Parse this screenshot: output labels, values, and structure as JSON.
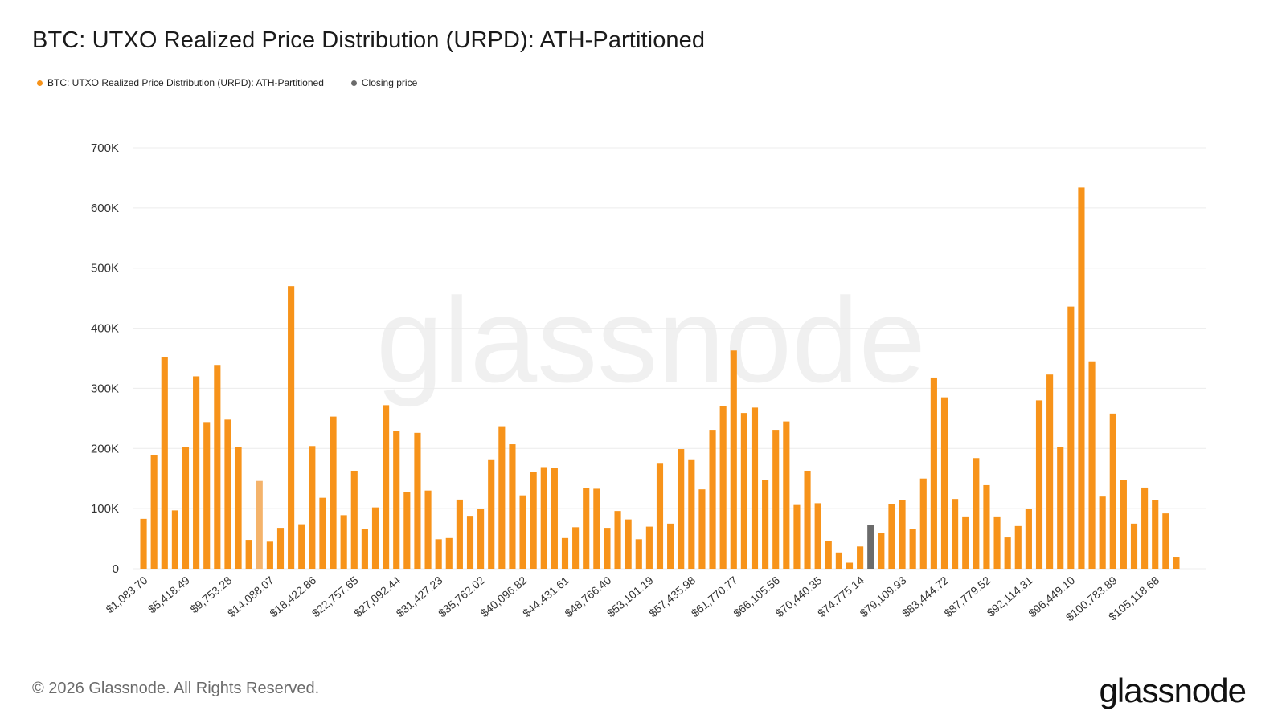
{
  "header": {
    "title": "BTC: UTXO Realized Price Distribution (URPD): ATH-Partitioned"
  },
  "footer": {
    "copyright": "© 2026 Glassnode. All Rights Reserved.",
    "logo_text": "glassnode"
  },
  "watermark": "glassnode",
  "colors": {
    "bar": "#f7931a",
    "bar_light": "#f4b36b",
    "closing": "#6b6b6b",
    "grid": "#ececec",
    "axis_text": "#333333"
  },
  "chart_data": {
    "type": "bar",
    "legend": [
      {
        "name": "BTC: UTXO Realized Price Distribution (URPD): ATH-Partitioned",
        "color": "#f7931a"
      },
      {
        "name": "Closing price",
        "color": "#6b6b6b"
      }
    ],
    "legend_position": "top-left",
    "grid": true,
    "ylim": [
      0,
      700000
    ],
    "y_ticks": [
      {
        "value": 0,
        "label": "0"
      },
      {
        "value": 100000,
        "label": "100K"
      },
      {
        "value": 200000,
        "label": "200K"
      },
      {
        "value": 300000,
        "label": "300K"
      },
      {
        "value": 400000,
        "label": "400K"
      },
      {
        "value": 500000,
        "label": "500K"
      },
      {
        "value": 600000,
        "label": "600K"
      },
      {
        "value": 700000,
        "label": "700K"
      }
    ],
    "x_tick_labels": [
      {
        "bar_index": 0,
        "label": "$1,083.70"
      },
      {
        "bar_index": 4,
        "label": "$5,418.49"
      },
      {
        "bar_index": 8,
        "label": "$9,753.28"
      },
      {
        "bar_index": 12,
        "label": "$14,088.07"
      },
      {
        "bar_index": 16,
        "label": "$18,422.86"
      },
      {
        "bar_index": 20,
        "label": "$22,757.65"
      },
      {
        "bar_index": 24,
        "label": "$27,092.44"
      },
      {
        "bar_index": 28,
        "label": "$31,427.23"
      },
      {
        "bar_index": 32,
        "label": "$35,762.02"
      },
      {
        "bar_index": 36,
        "label": "$40,096.82"
      },
      {
        "bar_index": 40,
        "label": "$44,431.61"
      },
      {
        "bar_index": 44,
        "label": "$48,766.40"
      },
      {
        "bar_index": 48,
        "label": "$53,101.19"
      },
      {
        "bar_index": 52,
        "label": "$57,435.98"
      },
      {
        "bar_index": 56,
        "label": "$61,770.77"
      },
      {
        "bar_index": 60,
        "label": "$66,105.56"
      },
      {
        "bar_index": 64,
        "label": "$70,440.35"
      },
      {
        "bar_index": 68,
        "label": "$74,775.14"
      },
      {
        "bar_index": 72,
        "label": "$79,109.93"
      },
      {
        "bar_index": 76,
        "label": "$83,444.72"
      },
      {
        "bar_index": 80,
        "label": "$87,779.52"
      },
      {
        "bar_index": 84,
        "label": "$92,114.31"
      },
      {
        "bar_index": 88,
        "label": "$96,449.10"
      },
      {
        "bar_index": 92,
        "label": "$100,783.89"
      },
      {
        "bar_index": 96,
        "label": "$105,118.68"
      }
    ],
    "values": [
      83000,
      189000,
      352000,
      97000,
      203000,
      320000,
      244000,
      339000,
      248000,
      203000,
      48000,
      146000,
      45000,
      68000,
      470000,
      74000,
      204000,
      118000,
      253000,
      89000,
      163000,
      66000,
      102000,
      272000,
      229000,
      127000,
      226000,
      130000,
      49000,
      51000,
      115000,
      88000,
      100000,
      182000,
      237000,
      207000,
      122000,
      161000,
      169000,
      167000,
      51000,
      69000,
      134000,
      133000,
      68000,
      96000,
      82000,
      49000,
      70000,
      176000,
      75000,
      199000,
      182000,
      132000,
      231000,
      270000,
      363000,
      259000,
      268000,
      148000,
      231000,
      245000,
      106000,
      163000,
      109000,
      46000,
      27000,
      10000,
      37000,
      73000,
      60000,
      107000,
      114000,
      66000,
      150000,
      318000,
      285000,
      116000,
      87000,
      184000,
      139000,
      87000,
      52000,
      71000,
      99000,
      280000,
      323000,
      202000,
      436000,
      634000,
      345000,
      120000,
      258000,
      147000,
      75000,
      135000,
      114000,
      92000,
      20000
    ],
    "highlight": {
      "light_bar_index": 11,
      "closing_price_bar_index": 69
    }
  }
}
